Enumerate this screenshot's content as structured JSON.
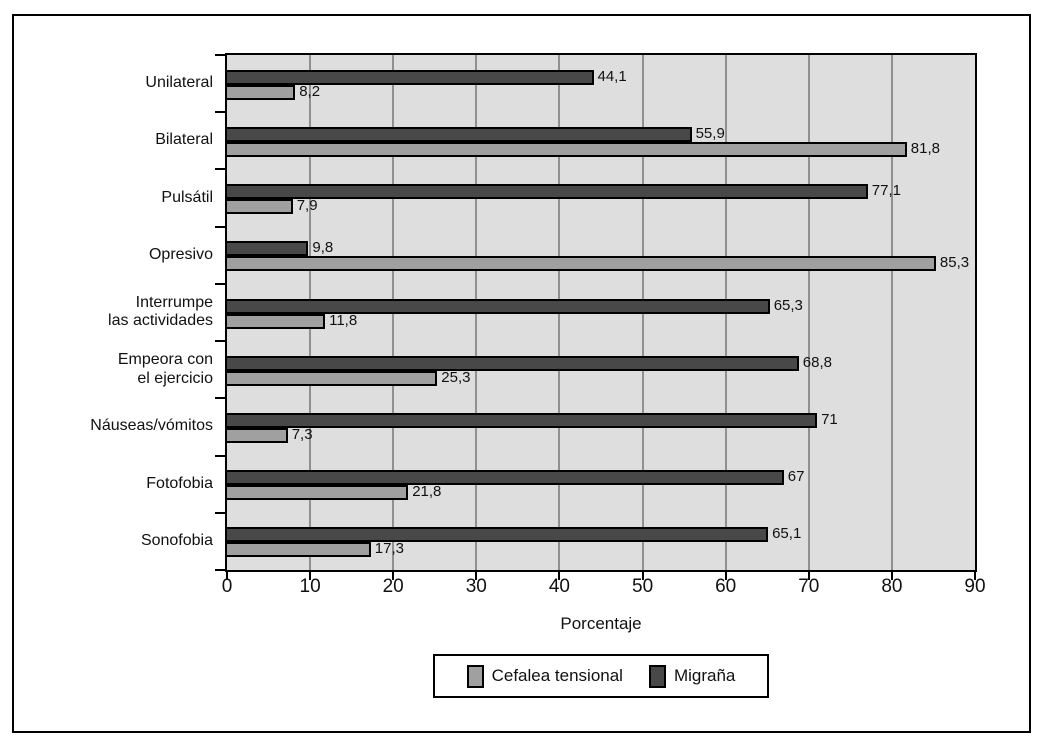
{
  "chart_data": {
    "type": "bar",
    "orientation": "horizontal",
    "xlabel": "Porcentaje",
    "xlim": [
      0,
      90
    ],
    "xticks": [
      0,
      10,
      20,
      30,
      40,
      50,
      60,
      70,
      80,
      90
    ],
    "grid": true,
    "plot_background": "#dedede",
    "gridline_color": "#909090",
    "bar_border_color": "#000000",
    "categories": [
      "Unilateral",
      "Bilateral",
      "Pulsátil",
      "Opresivo",
      "Interrumpe\nlas actividades",
      "Empeora con\nel ejercicio",
      "Náuseas/vómitos",
      "Fotofobia",
      "Sonofobia"
    ],
    "series": [
      {
        "name": "Migraña",
        "color": "#484848",
        "values": [
          44.1,
          55.9,
          77.1,
          9.8,
          65.3,
          68.8,
          71,
          67,
          65.1
        ],
        "value_labels": [
          "44,1",
          "55,9",
          "77,1",
          "9,8",
          "65,3",
          "68,8",
          "71",
          "67",
          "65,1"
        ]
      },
      {
        "name": "Cefalea tensional",
        "color": "#a0a0a0",
        "values": [
          8.2,
          81.8,
          7.9,
          85.3,
          11.8,
          25.3,
          7.3,
          21.8,
          17.3
        ],
        "value_labels": [
          "8,2",
          "81,8",
          "7,9",
          "85,3",
          "11,8",
          "25,3",
          "7,3",
          "21,8",
          "17,3"
        ]
      }
    ],
    "legend": {
      "position": "bottom",
      "items": [
        {
          "label": "Cefalea tensional",
          "color": "#a0a0a0"
        },
        {
          "label": "Migraña",
          "color": "#484848"
        }
      ]
    }
  }
}
